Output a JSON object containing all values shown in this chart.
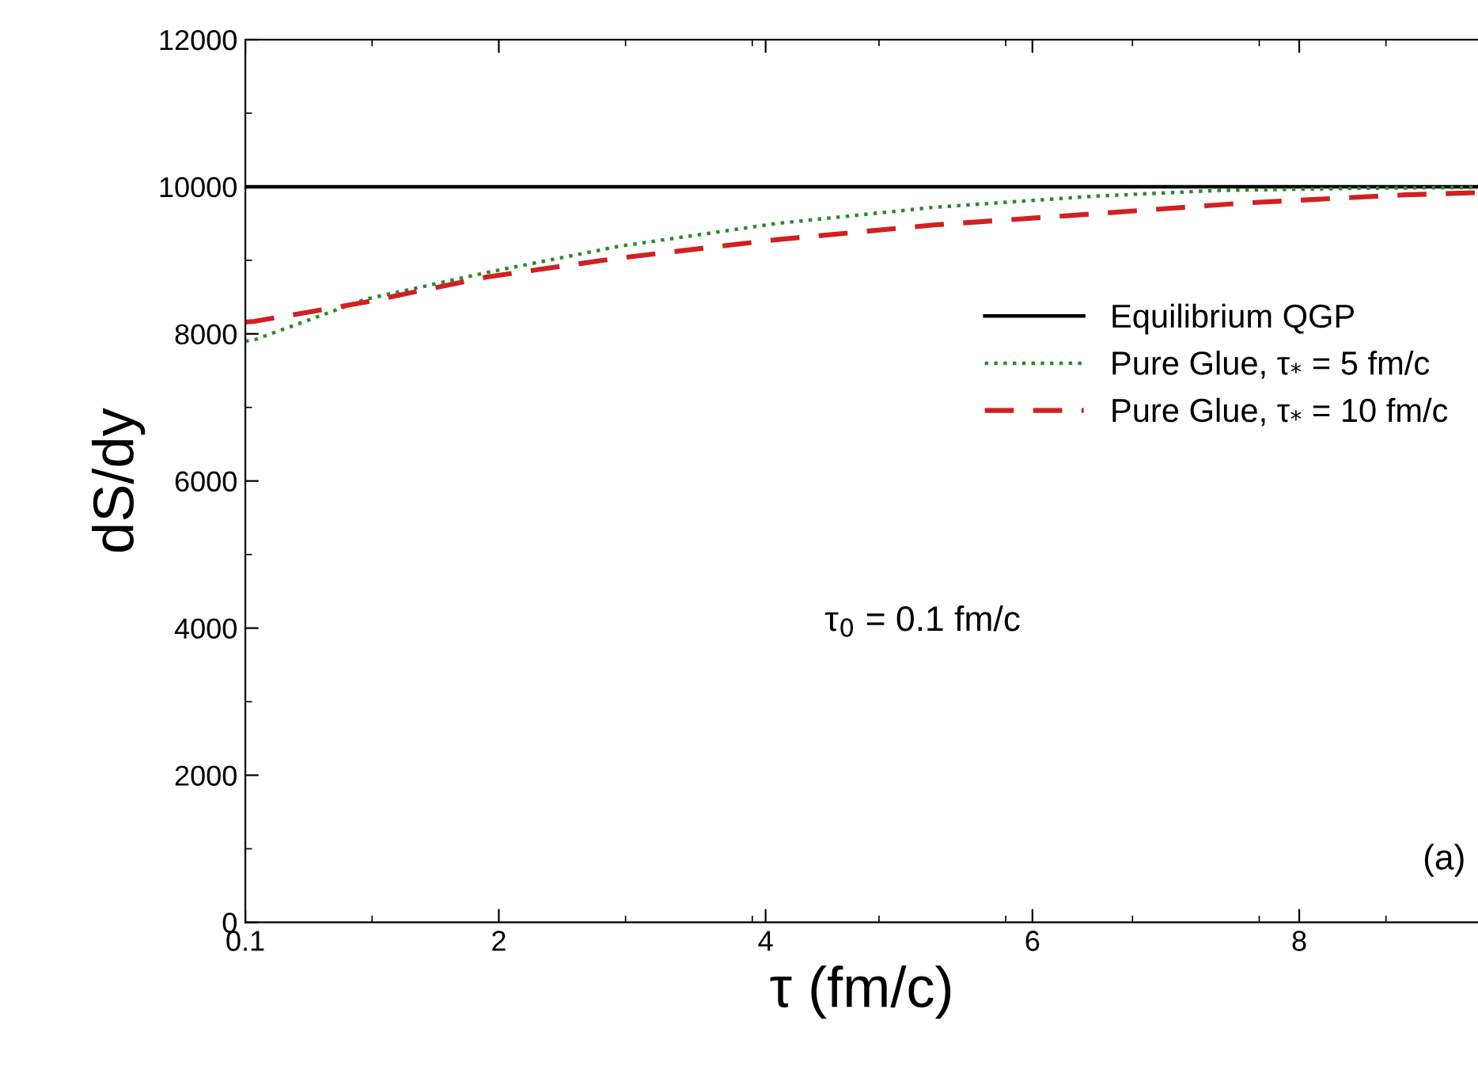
{
  "chart_data": {
    "type": "line",
    "xlabel": "τ (fm/c)",
    "ylabel": "dS/dy",
    "xlim": [
      0.1,
      9.34
    ],
    "xticks": [
      0.1,
      2,
      4,
      6,
      8
    ],
    "ylim": [
      0,
      12000
    ],
    "yticks": [
      0,
      2000,
      4000,
      6000,
      8000,
      10000,
      12000
    ],
    "grid": false,
    "legend": "right",
    "marker": "none",
    "series": [
      {
        "name": "Equilibrium QGP",
        "color": "#000000",
        "line_style": "solid",
        "x": [
          0.1,
          9.34
        ],
        "values": [
          10000,
          10000
        ]
      },
      {
        "name": "Pure Glue, τ$_{*}$ = 5 fm/c",
        "color": "#2a8a2a",
        "line_style": "dotted",
        "x": [
          0.1,
          0.17,
          1.0,
          1.9,
          2.9,
          4.08,
          5.26,
          6.45,
          7.4,
          8.5,
          9.34
        ],
        "values": [
          7900,
          7920,
          8470,
          8830,
          9190,
          9500,
          9720,
          9870,
          9950,
          9980,
          9990
        ]
      },
      {
        "name": "Pure Glue, τ$_{*}$ = 10 fm/c",
        "color": "#d02020",
        "line_style": "dashed",
        "x": [
          0.1,
          0.17,
          1.0,
          1.9,
          2.9,
          4.08,
          5.26,
          6.45,
          7.6,
          8.8,
          9.34
        ],
        "values": [
          8160,
          8170,
          8430,
          8770,
          9030,
          9280,
          9480,
          9630,
          9780,
          9890,
          9920
        ]
      }
    ],
    "annotations": [
      {
        "text": "τ$_{0}$ = 0.1 fm/c"
      },
      {
        "text": "(a)"
      }
    ]
  }
}
